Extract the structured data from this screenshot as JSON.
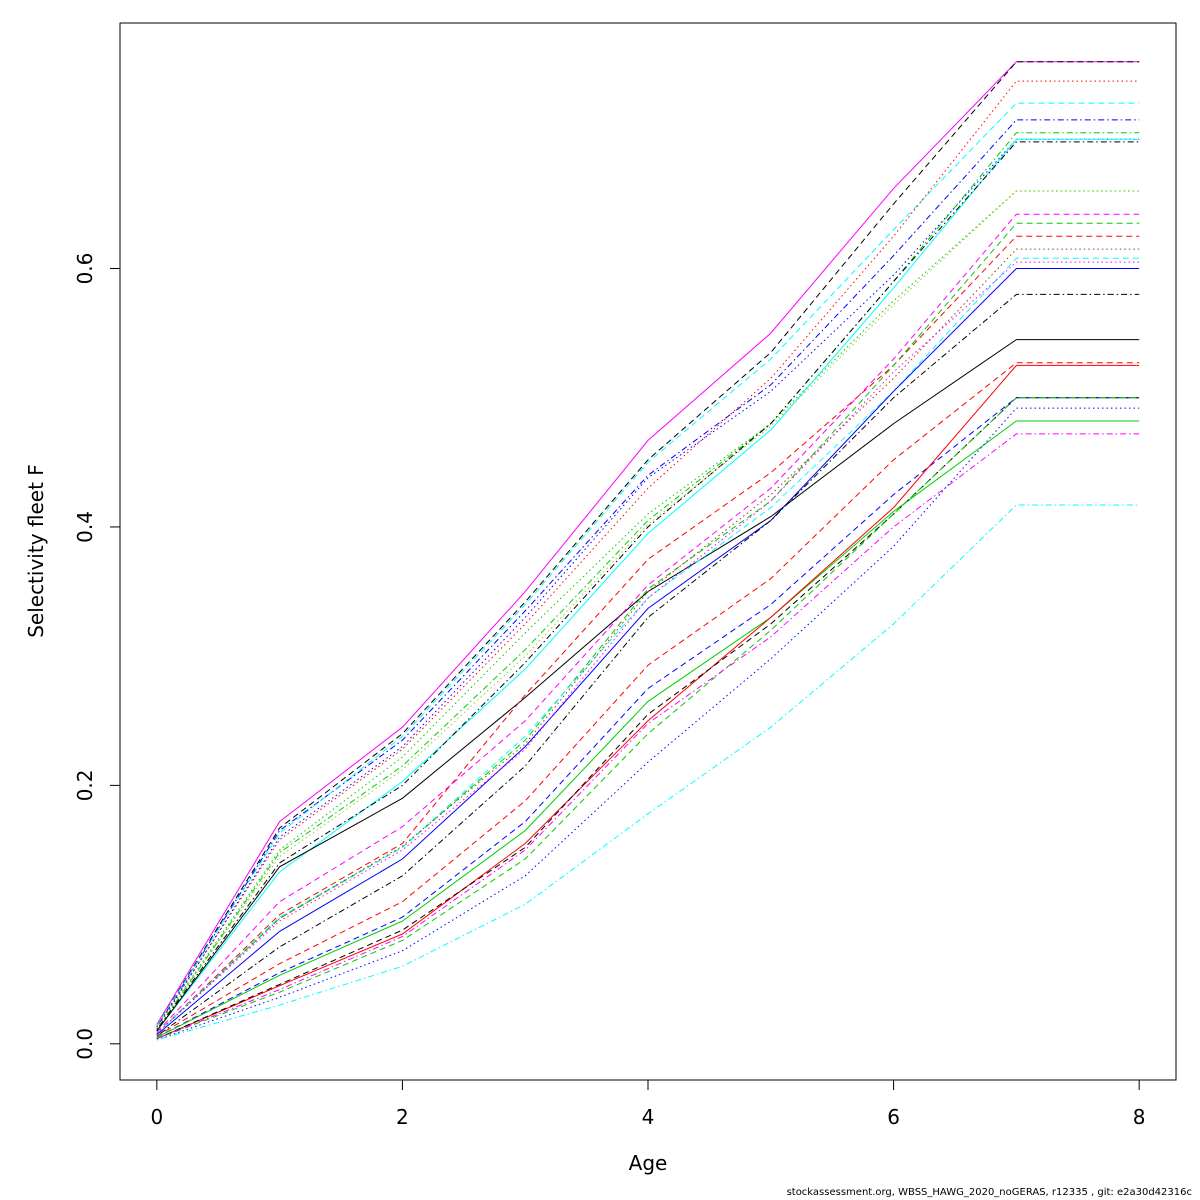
{
  "chart_data": {
    "type": "line",
    "title": "",
    "xlabel": "Age",
    "ylabel": "Selectivity fleet F",
    "xlim": [
      -0.3,
      8.3
    ],
    "ylim": [
      -0.028,
      0.79
    ],
    "x_ticks": [
      "0",
      "2",
      "4",
      "6",
      "8"
    ],
    "y_ticks": [
      "0.0",
      "0.2",
      "0.4",
      "0.6"
    ],
    "grid": false,
    "x": [
      0,
      1,
      2,
      3,
      4,
      5,
      6,
      7,
      8
    ],
    "series": [
      {
        "color": "#ff00ff",
        "dash": "solid",
        "values": [
          0.015,
          0.172,
          0.245,
          0.35,
          0.467,
          0.55,
          0.662,
          0.76,
          0.76
        ]
      },
      {
        "color": "#000000",
        "dash": "dashed",
        "values": [
          0.014,
          0.167,
          0.24,
          0.342,
          0.452,
          0.535,
          0.65,
          0.76,
          0.76
        ]
      },
      {
        "color": "#0000ff",
        "dash": "dotdash",
        "values": [
          0.013,
          0.165,
          0.235,
          0.335,
          0.44,
          0.51,
          0.61,
          0.715,
          0.715
        ]
      },
      {
        "color": "#00ffff",
        "dash": "dashed",
        "values": [
          0.014,
          0.163,
          0.238,
          0.34,
          0.45,
          0.53,
          0.63,
          0.728,
          0.728
        ]
      },
      {
        "color": "#ff0000",
        "dash": "dotted",
        "values": [
          0.013,
          0.158,
          0.228,
          0.325,
          0.43,
          0.515,
          0.625,
          0.745,
          0.745
        ]
      },
      {
        "color": "#0000ff",
        "dash": "dotted",
        "values": [
          0.012,
          0.16,
          0.23,
          0.33,
          0.438,
          0.505,
          0.595,
          0.7,
          0.7
        ]
      },
      {
        "color": "#00cd00",
        "dash": "dotted",
        "values": [
          0.012,
          0.15,
          0.222,
          0.318,
          0.41,
          0.48,
          0.575,
          0.66,
          0.66
        ]
      },
      {
        "color": "#00cd00",
        "dash": "dotdash",
        "values": [
          0.011,
          0.148,
          0.215,
          0.305,
          0.405,
          0.48,
          0.59,
          0.705,
          0.705
        ]
      },
      {
        "color": "#00ffff",
        "dash": "solid",
        "values": [
          0.01,
          0.133,
          0.203,
          0.29,
          0.395,
          0.475,
          0.585,
          0.7,
          0.7
        ]
      },
      {
        "color": "#000000",
        "dash": "dotdash",
        "values": [
          0.011,
          0.14,
          0.2,
          0.295,
          0.4,
          0.48,
          0.59,
          0.698,
          0.698
        ]
      },
      {
        "color": "#000000",
        "dash": "solid",
        "values": [
          0.01,
          0.137,
          0.19,
          0.268,
          0.35,
          0.408,
          0.48,
          0.545,
          0.545
        ]
      },
      {
        "color": "#9acd32",
        "dash": "dotted",
        "values": [
          0.012,
          0.145,
          0.212,
          0.3,
          0.402,
          0.478,
          0.572,
          0.66,
          0.66
        ]
      },
      {
        "color": "#ff0000",
        "dash": "dashed",
        "values": [
          0.008,
          0.1,
          0.155,
          0.27,
          0.375,
          0.442,
          0.525,
          0.625,
          0.625
        ]
      },
      {
        "color": "#ff00ff",
        "dash": "dashed",
        "values": [
          0.009,
          0.11,
          0.168,
          0.25,
          0.355,
          0.43,
          0.53,
          0.642,
          0.642
        ]
      },
      {
        "color": "#00cd00",
        "dash": "dashed",
        "values": [
          0.008,
          0.097,
          0.152,
          0.235,
          0.352,
          0.42,
          0.525,
          0.635,
          0.635
        ]
      },
      {
        "color": "#00ffff",
        "dash": "dashed",
        "values": [
          0.008,
          0.098,
          0.152,
          0.238,
          0.345,
          0.415,
          0.505,
          0.608,
          0.608
        ]
      },
      {
        "color": "#8b4513",
        "dash": "dotted",
        "values": [
          0.008,
          0.097,
          0.153,
          0.232,
          0.35,
          0.425,
          0.515,
          0.615,
          0.615
        ]
      },
      {
        "color": "#0000ff",
        "dash": "solid",
        "values": [
          0.007,
          0.087,
          0.143,
          0.23,
          0.337,
          0.405,
          0.505,
          0.6,
          0.6
        ]
      },
      {
        "color": "#ff00ff",
        "dash": "dotted",
        "values": [
          0.008,
          0.095,
          0.15,
          0.228,
          0.345,
          0.42,
          0.52,
          0.605,
          0.605
        ]
      },
      {
        "color": "#000000",
        "dash": "dotdash",
        "values": [
          0.006,
          0.075,
          0.13,
          0.215,
          0.33,
          0.405,
          0.5,
          0.58,
          0.58
        ]
      },
      {
        "color": "#ff0000",
        "dash": "dashed",
        "values": [
          0.006,
          0.062,
          0.11,
          0.188,
          0.293,
          0.36,
          0.452,
          0.527,
          0.527
        ]
      },
      {
        "color": "#0000ff",
        "dash": "dashed",
        "values": [
          0.005,
          0.055,
          0.098,
          0.172,
          0.275,
          0.34,
          0.425,
          0.5,
          0.5
        ]
      },
      {
        "color": "#00cd00",
        "dash": "solid",
        "values": [
          0.005,
          0.053,
          0.095,
          0.165,
          0.265,
          0.33,
          0.412,
          0.482,
          0.482
        ]
      },
      {
        "color": "#ff0000",
        "dash": "solid",
        "values": [
          0.004,
          0.045,
          0.085,
          0.155,
          0.25,
          0.33,
          0.415,
          0.525,
          0.525
        ]
      },
      {
        "color": "#000000",
        "dash": "dashed",
        "values": [
          0.004,
          0.046,
          0.088,
          0.152,
          0.255,
          0.325,
          0.41,
          0.5,
          0.5
        ]
      },
      {
        "color": "#00cd00",
        "dash": "dashed",
        "values": [
          0.004,
          0.04,
          0.08,
          0.143,
          0.24,
          0.32,
          0.41,
          0.5,
          0.5
        ]
      },
      {
        "color": "#ff00ff",
        "dash": "dotdash",
        "values": [
          0.004,
          0.042,
          0.083,
          0.15,
          0.248,
          0.315,
          0.4,
          0.472,
          0.472
        ]
      },
      {
        "color": "#0000ff",
        "dash": "dotted",
        "values": [
          0.003,
          0.036,
          0.072,
          0.13,
          0.218,
          0.298,
          0.385,
          0.492,
          0.492
        ]
      },
      {
        "color": "#00ffff",
        "dash": "dotdash",
        "values": [
          0.003,
          0.03,
          0.06,
          0.108,
          0.178,
          0.245,
          0.325,
          0.417,
          0.417
        ]
      }
    ]
  },
  "footer": {
    "note": "stockassessment.org, WBSS_HAWG_2020_noGERAS, r12335 , git: e2a30d42316c"
  }
}
